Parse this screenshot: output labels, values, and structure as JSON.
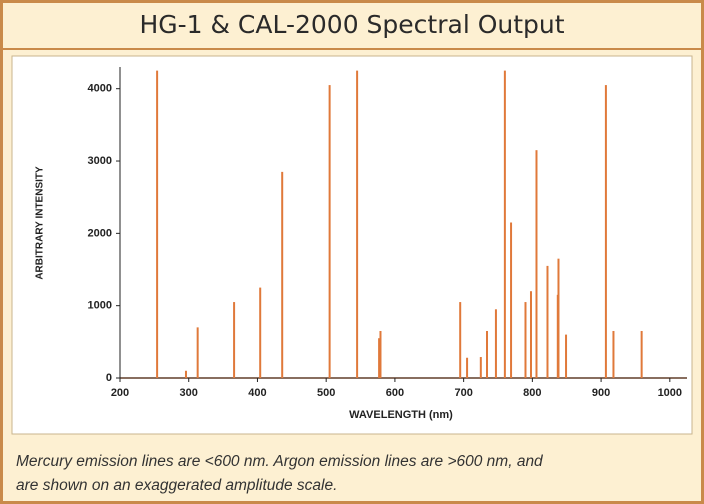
{
  "chart_data": {
    "type": "bar",
    "title": "HG-1 & CAL-2000 Spectral Output",
    "x_label": "WAVELENGTH (nm)",
    "y_label": "ARBITRARY INTENSITY",
    "caption": [
      "Mercury emission lines are <600 nm. Argon emission lines are >600 nm, and",
      "are shown on an exaggerated amplitude scale."
    ],
    "x": [
      254,
      296,
      313,
      366,
      404,
      436,
      505,
      545,
      577,
      579,
      695,
      705,
      725,
      734,
      747,
      760,
      769,
      790,
      798,
      806,
      822,
      837,
      838,
      849,
      907,
      918,
      959
    ],
    "values": [
      4250,
      100,
      700,
      1050,
      1250,
      2850,
      4050,
      4250,
      550,
      650,
      1050,
      280,
      290,
      650,
      950,
      4250,
      2150,
      1050,
      1200,
      3150,
      1550,
      1150,
      1650,
      600,
      4050,
      650,
      650
    ],
    "color": "#e0793a",
    "xlim": [
      200,
      1025
    ],
    "ylim": [
      0,
      4300
    ],
    "xticks": [
      200,
      300,
      400,
      500,
      600,
      700,
      800,
      900,
      1000
    ],
    "yticks": [
      0,
      1000,
      2000,
      3000,
      4000
    ],
    "grid": false
  }
}
